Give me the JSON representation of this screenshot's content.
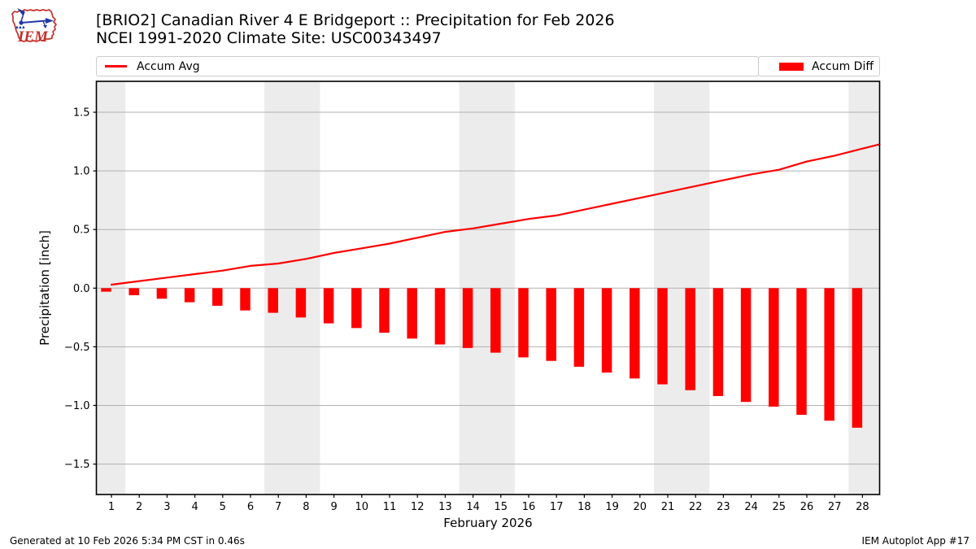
{
  "header": {
    "title_line1": "[BRIO2] Canadian River 4 E Bridgeport :: Precipitation for Feb 2026",
    "title_line2": "NCEI 1991-2020 Climate Site: USC00343497"
  },
  "logo": {
    "text": "IEM"
  },
  "legend": [
    {
      "label": "Accum Avg",
      "type": "line",
      "color": "#ff0000"
    },
    {
      "label": "Accum Diff",
      "type": "patch",
      "color": "#ff0000"
    }
  ],
  "footer": {
    "left": "Generated at 10 Feb 2026 5:34 PM CST in 0.46s",
    "right": "IEM Autoplot App #17"
  },
  "chart_data": {
    "type": "bar",
    "title": "[BRIO2] Canadian River 4 E Bridgeport :: Precipitation for Feb 2026",
    "subtitle": "NCEI 1991-2020 Climate Site: USC00343497",
    "xlabel": "February 2026",
    "ylabel": "Precipitation [inch]",
    "x": [
      1,
      2,
      3,
      4,
      5,
      6,
      7,
      8,
      9,
      10,
      11,
      12,
      13,
      14,
      15,
      16,
      17,
      18,
      19,
      20,
      21,
      22,
      23,
      24,
      25,
      26,
      27,
      28
    ],
    "series": [
      {
        "name": "Accum Avg",
        "type": "line",
        "color": "#ff0000",
        "values": [
          0.03,
          0.06,
          0.09,
          0.12,
          0.15,
          0.19,
          0.21,
          0.25,
          0.3,
          0.34,
          0.38,
          0.43,
          0.48,
          0.51,
          0.55,
          0.59,
          0.62,
          0.67,
          0.72,
          0.77,
          0.82,
          0.87,
          0.92,
          0.97,
          1.01,
          1.08,
          1.13,
          1.19
        ]
      },
      {
        "name": "Accum Diff",
        "type": "bar",
        "color": "#ff0000",
        "values": [
          -0.03,
          -0.06,
          -0.09,
          -0.12,
          -0.15,
          -0.19,
          -0.21,
          -0.25,
          -0.3,
          -0.34,
          -0.38,
          -0.43,
          -0.48,
          -0.51,
          -0.55,
          -0.59,
          -0.62,
          -0.67,
          -0.72,
          -0.77,
          -0.82,
          -0.87,
          -0.92,
          -0.97,
          -1.01,
          -1.08,
          -1.13,
          -1.19
        ]
      }
    ],
    "ylim": [
      -1.76,
      1.76
    ],
    "yticks": [
      -1.5,
      -1.0,
      -0.5,
      0.0,
      0.5,
      1.0,
      1.5
    ],
    "ytick_labels": [
      "−1.5",
      "−1.0",
      "−0.5",
      "0.0",
      "0.5",
      "1.0",
      "1.5"
    ],
    "grid": true,
    "grid_color": "#b0b0b0",
    "weekend_bands": [
      [
        1,
        1
      ],
      [
        7,
        8
      ],
      [
        14,
        15
      ],
      [
        21,
        22
      ],
      [
        28,
        28
      ]
    ],
    "band_color": "#ececec",
    "legend_position": "top"
  }
}
